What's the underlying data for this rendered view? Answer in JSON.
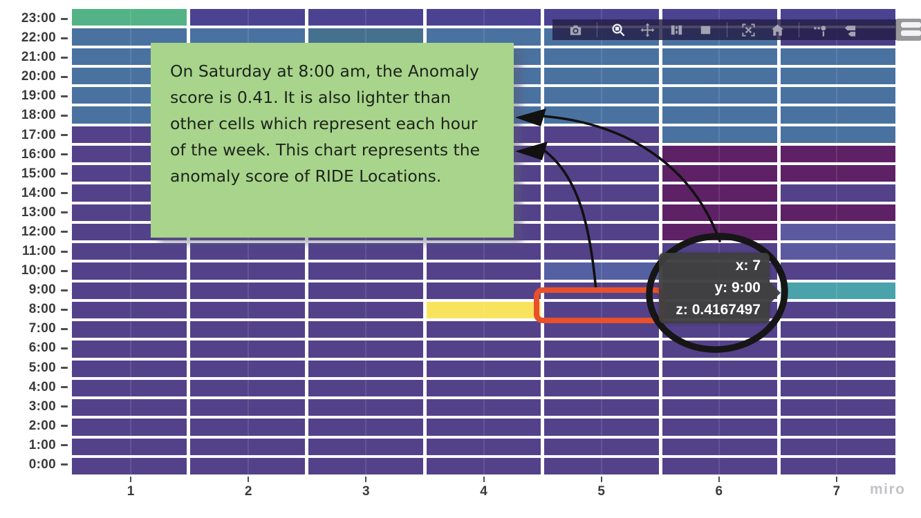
{
  "chart_data": {
    "type": "heatmap",
    "description": "Anomaly score of RIDE Locations by hour of the week",
    "x_ticks": [
      "1",
      "2",
      "3",
      "4",
      "5",
      "6",
      "7"
    ],
    "palette": {
      "G": "#53b386",
      "I": "#4c4292",
      "I2": "#4a4089",
      "B": "#4a72a1",
      "Bt": "#45718f",
      "P": "#53428a",
      "D": "#5e2166",
      "W": "#5b5aa1",
      "W2": "#5560a3",
      "T": "#4aa3ab",
      "Y": "#f8e35e"
    },
    "grid": [
      {
        "hour": "23:00",
        "cells": [
          "G",
          "I",
          "I",
          "I",
          "I",
          "I",
          "I"
        ]
      },
      {
        "hour": "22:00",
        "cells": [
          "B",
          "B",
          "Bt",
          "B",
          "B",
          "B",
          "I2"
        ]
      },
      {
        "hour": "21:00",
        "cells": [
          "B",
          "B",
          "B",
          "B",
          "B",
          "B",
          "B"
        ]
      },
      {
        "hour": "20:00",
        "cells": [
          "B",
          "B",
          "B",
          "B",
          "B",
          "B",
          "B"
        ]
      },
      {
        "hour": "19:00",
        "cells": [
          "B",
          "B",
          "B",
          "B",
          "B",
          "B",
          "B"
        ]
      },
      {
        "hour": "18:00",
        "cells": [
          "B",
          "B",
          "B",
          "B",
          "B",
          "B",
          "B"
        ]
      },
      {
        "hour": "17:00",
        "cells": [
          "P",
          "P",
          "P",
          "P",
          "P",
          "B",
          "B"
        ]
      },
      {
        "hour": "16:00",
        "cells": [
          "P",
          "P",
          "P",
          "P",
          "P",
          "D",
          "D"
        ]
      },
      {
        "hour": "15:00",
        "cells": [
          "P",
          "P",
          "P",
          "P",
          "P",
          "D",
          "D"
        ]
      },
      {
        "hour": "14:00",
        "cells": [
          "P",
          "P",
          "P",
          "P",
          "P",
          "D",
          "P"
        ]
      },
      {
        "hour": "13:00",
        "cells": [
          "P",
          "P",
          "P",
          "P",
          "P",
          "D",
          "D"
        ]
      },
      {
        "hour": "12:00",
        "cells": [
          "P",
          "P",
          "P",
          "P",
          "P",
          "D",
          "W"
        ]
      },
      {
        "hour": "11:00",
        "cells": [
          "P",
          "P",
          "P",
          "P",
          "P",
          "P",
          "W"
        ]
      },
      {
        "hour": "10:00",
        "cells": [
          "P",
          "P",
          "P",
          "P",
          "W2",
          "P",
          "P"
        ]
      },
      {
        "hour": "9:00",
        "cells": [
          "P",
          "P",
          "P",
          "P",
          "P",
          "P",
          "T"
        ]
      },
      {
        "hour": "8:00",
        "cells": [
          "P",
          "P",
          "P",
          "Y",
          "P",
          "P",
          "P"
        ]
      },
      {
        "hour": "7:00",
        "cells": [
          "P",
          "P",
          "P",
          "P",
          "P",
          "P",
          "P"
        ]
      },
      {
        "hour": "6:00",
        "cells": [
          "P",
          "P",
          "P",
          "P",
          "P",
          "P",
          "P"
        ]
      },
      {
        "hour": "5:00",
        "cells": [
          "P",
          "P",
          "P",
          "P",
          "P",
          "P",
          "P"
        ]
      },
      {
        "hour": "4:00",
        "cells": [
          "P",
          "P",
          "P",
          "P",
          "P",
          "P",
          "P"
        ]
      },
      {
        "hour": "3:00",
        "cells": [
          "P",
          "P",
          "P",
          "P",
          "P",
          "P",
          "P"
        ]
      },
      {
        "hour": "2:00",
        "cells": [
          "P",
          "P",
          "P",
          "P",
          "P",
          "P",
          "P"
        ]
      },
      {
        "hour": "1:00",
        "cells": [
          "P",
          "P",
          "P",
          "P",
          "P",
          "P",
          "P"
        ]
      },
      {
        "hour": "0:00",
        "cells": [
          "P",
          "P",
          "P",
          "P",
          "P",
          "P",
          "P"
        ]
      }
    ],
    "hovered_point": {
      "x": "7",
      "y": "9:00",
      "z": "0.4167497"
    }
  },
  "tooltip": {
    "lines": [
      "x: 7",
      "y: 9:00",
      "z: 0.4167497"
    ]
  },
  "note": {
    "text": "On Saturday at 8:00 am, the Anomaly score is 0.41. It is also lighter than other cells which represent each hour of the week. This chart represents the anomaly score of RIDE Locations.",
    "color": "#a8d48c"
  },
  "modebar": {
    "icons": [
      "camera",
      "separator",
      "zoom",
      "pan",
      "box-select",
      "lasso-select",
      "separator",
      "autoscale",
      "home",
      "separator",
      "hover-closest",
      "hover-compare"
    ]
  },
  "annotations": {
    "highlight_rect_color": "#e8512b",
    "circle_color": "#161616",
    "arrow_color": "#111111"
  },
  "watermark": "miro"
}
